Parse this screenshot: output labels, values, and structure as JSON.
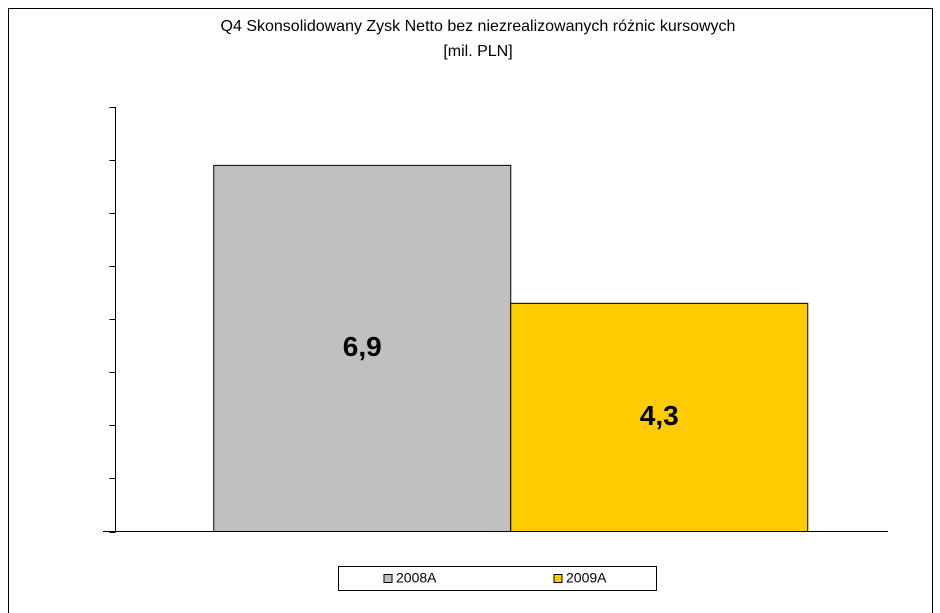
{
  "chart_data": {
    "type": "bar",
    "title": "Q4 Skonsolidowany Zysk Netto bez niezrealizowanych różnic kursowych",
    "subtitle": "[mil. PLN]",
    "categories": [
      null
    ],
    "series": [
      {
        "name": "2008A",
        "color": "#c0c0c0",
        "values": [
          6.9
        ],
        "value_labels": [
          "6,9"
        ]
      },
      {
        "name": "2009A",
        "color": "#ffcc00",
        "values": [
          4.3
        ],
        "value_labels": [
          "4,3"
        ]
      }
    ],
    "ylim": [
      0,
      8
    ],
    "yticks": [
      0,
      1,
      2,
      3,
      4,
      5,
      6,
      7,
      8
    ],
    "grid": false,
    "legend": "bottom"
  }
}
